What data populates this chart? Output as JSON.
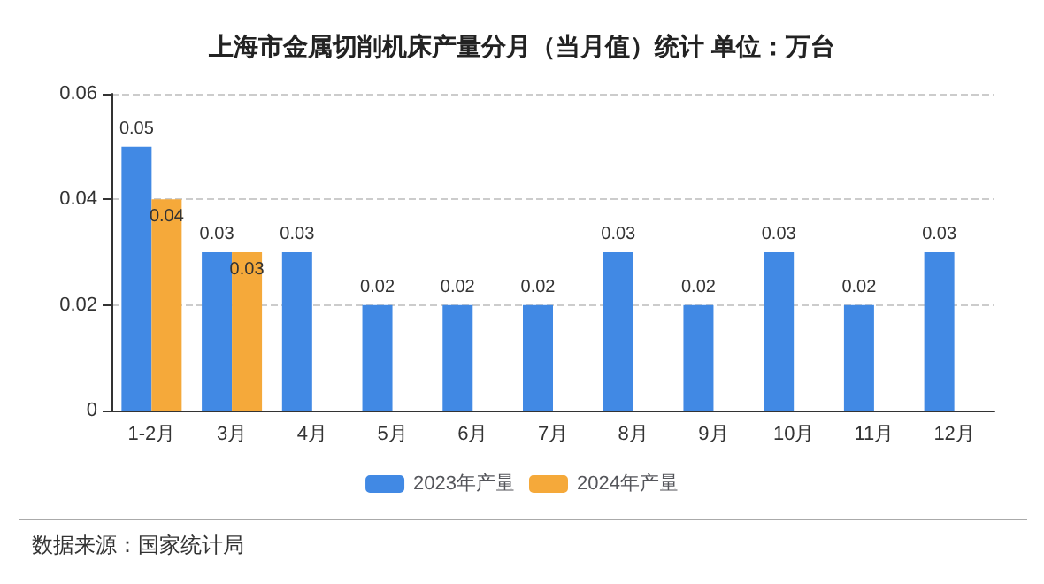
{
  "chart_data": {
    "type": "bar",
    "title": "上海市金属切削机床产量分月（当月值）统计 单位：万台",
    "categories": [
      "1-2月",
      "3月",
      "4月",
      "5月",
      "6月",
      "7月",
      "8月",
      "9月",
      "10月",
      "11月",
      "12月"
    ],
    "series": [
      {
        "name": "2023年产量",
        "color": "#4189e4",
        "values": [
          0.05,
          0.03,
          0.03,
          0.02,
          0.02,
          0.02,
          0.03,
          0.02,
          0.03,
          0.02,
          0.03
        ]
      },
      {
        "name": "2024年产量",
        "color": "#f5a93a",
        "values": [
          0.04,
          0.03,
          null,
          null,
          null,
          null,
          null,
          null,
          null,
          null,
          null
        ]
      }
    ],
    "ylim": [
      0,
      0.06
    ],
    "yticks": [
      0,
      0.02,
      0.04,
      0.06
    ],
    "grid": "y",
    "legend": "bottom",
    "data_labels": true,
    "annotations": [
      "数据来源：国家统计局"
    ]
  }
}
